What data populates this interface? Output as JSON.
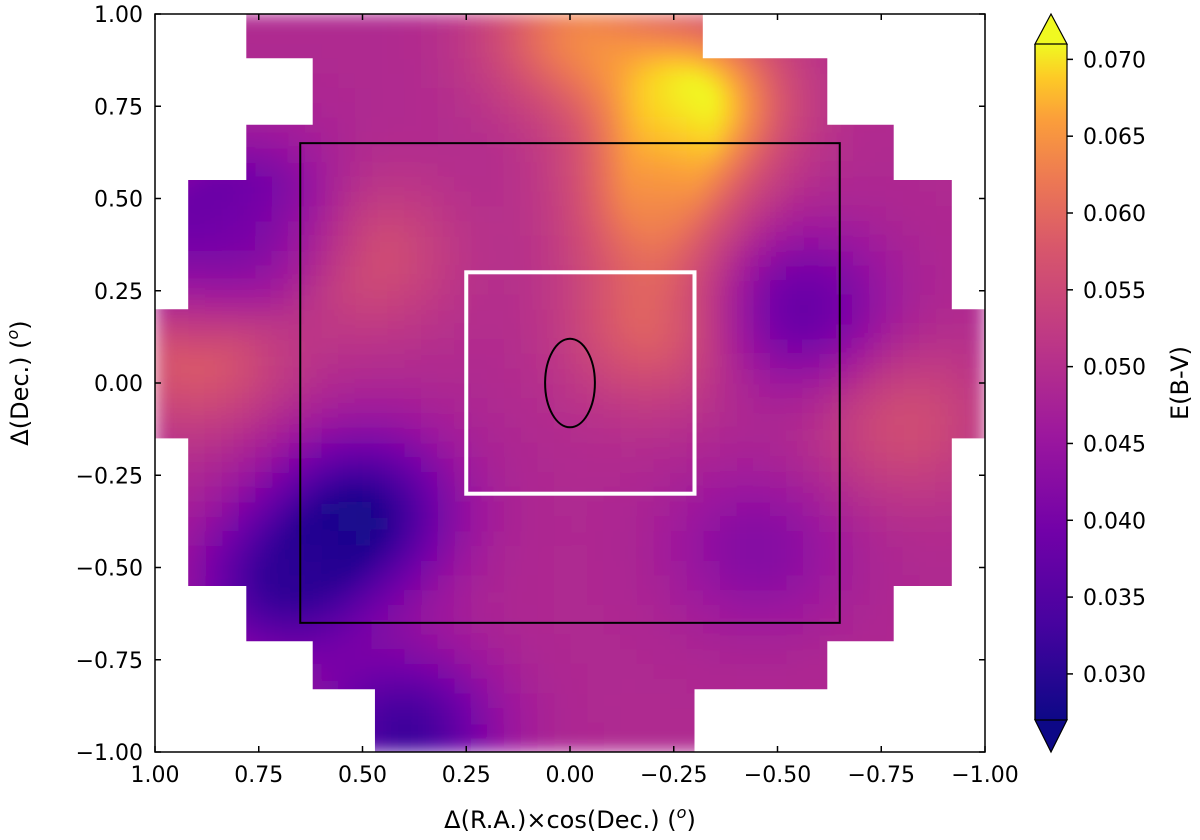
{
  "chart_data": {
    "type": "heatmap",
    "title": "",
    "xlabel": "Δ(R.A.)×cos(Dec.) (",
    "xlabel_unit": "o",
    "xlabel_close": ")",
    "ylabel": "Δ(Dec.) (",
    "ylabel_unit": "o",
    "ylabel_close": ")",
    "xlim": [
      1.0,
      -1.0
    ],
    "ylim": [
      -1.0,
      1.0
    ],
    "x_ticks": [
      1.0,
      0.75,
      0.5,
      0.25,
      0.0,
      -0.25,
      -0.5,
      -0.75,
      -1.0
    ],
    "x_tick_labels": [
      "1.00",
      "0.75",
      "0.50",
      "0.25",
      "0.00",
      "−0.25",
      "−0.50",
      "−0.75",
      "−1.00"
    ],
    "y_ticks": [
      1.0,
      0.75,
      0.5,
      0.25,
      0.0,
      -0.25,
      -0.5,
      -0.75,
      -1.0
    ],
    "y_tick_labels": [
      "1.00",
      "0.75",
      "0.50",
      "0.25",
      "0.00",
      "−0.25",
      "−0.50",
      "−0.75",
      "−1.00"
    ],
    "colorbar": {
      "label": "E(B-V)",
      "range": [
        0.027,
        0.071
      ],
      "extend": "both",
      "colormap": "plasma",
      "ticks": [
        0.03,
        0.035,
        0.04,
        0.045,
        0.05,
        0.055,
        0.06,
        0.065,
        0.07
      ],
      "tick_labels": [
        "0.030",
        "0.035",
        "0.040",
        "0.045",
        "0.050",
        "0.055",
        "0.060",
        "0.065",
        "0.070"
      ]
    },
    "overlays": [
      {
        "name": "black-square",
        "shape": "rect",
        "x": [
          -0.65,
          0.65
        ],
        "y": [
          -0.65,
          0.65
        ],
        "color": "#000000"
      },
      {
        "name": "white-square",
        "shape": "rect",
        "x": [
          -0.3,
          0.25
        ],
        "y": [
          -0.3,
          0.3
        ],
        "color": "#ffffff"
      },
      {
        "name": "black-circle",
        "shape": "ellipse",
        "cx": 0.0,
        "cy": 0.0,
        "rx": 0.12,
        "ry": 0.12,
        "color": "#000000"
      }
    ],
    "extinction_features": [
      {
        "x": -0.3,
        "y": 0.77,
        "value": 0.07,
        "kind": "max"
      },
      {
        "x": 0.0,
        "y": 0.95,
        "value": 0.062,
        "kind": "high"
      },
      {
        "x": -0.2,
        "y": 0.5,
        "value": 0.062,
        "kind": "high"
      },
      {
        "x": -0.2,
        "y": 0.15,
        "value": 0.059,
        "kind": "high"
      },
      {
        "x": 0.9,
        "y": 0.1,
        "value": 0.06,
        "kind": "high"
      },
      {
        "x": 0.5,
        "y": 0.35,
        "value": 0.057,
        "kind": "high"
      },
      {
        "x": -0.8,
        "y": -0.1,
        "value": 0.056,
        "kind": "high"
      },
      {
        "x": 0.5,
        "y": -0.35,
        "value": 0.03,
        "kind": "min"
      },
      {
        "x": 0.7,
        "y": -0.55,
        "value": 0.033,
        "kind": "min"
      },
      {
        "x": 0.4,
        "y": -0.95,
        "value": 0.032,
        "kind": "min"
      },
      {
        "x": 0.9,
        "y": 0.35,
        "value": 0.038,
        "kind": "min"
      },
      {
        "x": 0.75,
        "y": 0.45,
        "value": 0.039,
        "kind": "min"
      },
      {
        "x": -0.55,
        "y": 0.2,
        "value": 0.037,
        "kind": "min"
      },
      {
        "x": -0.45,
        "y": -0.45,
        "value": 0.042,
        "kind": "low"
      }
    ]
  }
}
